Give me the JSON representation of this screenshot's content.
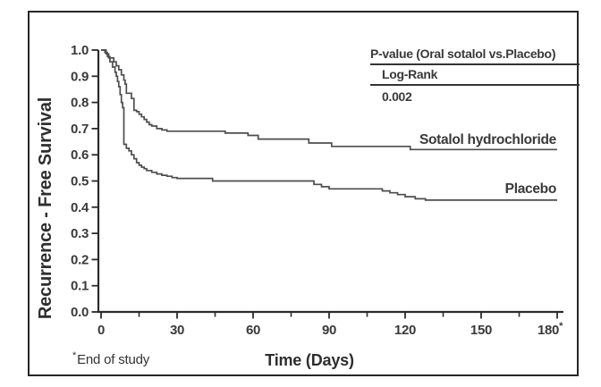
{
  "chart_data": {
    "type": "line",
    "chart_style": "kaplan-meier-step",
    "title": "",
    "xlabel": "Time (Days)",
    "ylabel": "Recurrence - Free Survival",
    "xlim": [
      0,
      183
    ],
    "ylim": [
      0.0,
      1.0
    ],
    "grid": false,
    "xticks": [
      0,
      30,
      60,
      90,
      120,
      150,
      180
    ],
    "xtick_labels": [
      "0",
      "30",
      "60",
      "90",
      "120",
      "150",
      "180*"
    ],
    "minor_xticks": [
      15,
      45,
      75,
      105,
      135,
      165
    ],
    "yticks": [
      1.0,
      0.9,
      0.8,
      0.7,
      0.6,
      0.5,
      0.4,
      0.3,
      0.2,
      0.1,
      0.0
    ],
    "ytick_labels": [
      "1.0",
      "0.9",
      "0.8",
      "0.7",
      "0.6",
      "0.5",
      "0.4",
      "0.3",
      "0.2",
      "0.1",
      "0.0"
    ],
    "legend_position": "labels-at-line-ends",
    "series": [
      {
        "name": "Sotalol hydrochloride",
        "points": [
          [
            0,
            1.0
          ],
          [
            2,
            0.985
          ],
          [
            3,
            0.97
          ],
          [
            5,
            0.955
          ],
          [
            6,
            0.94
          ],
          [
            7,
            0.925
          ],
          [
            8,
            0.905
          ],
          [
            9,
            0.885
          ],
          [
            9.5,
            0.87
          ],
          [
            10,
            0.835
          ],
          [
            12,
            0.815
          ],
          [
            13,
            0.77
          ],
          [
            14,
            0.765
          ],
          [
            15,
            0.755
          ],
          [
            16,
            0.745
          ],
          [
            17,
            0.735
          ],
          [
            18,
            0.725
          ],
          [
            19,
            0.715
          ],
          [
            20,
            0.71
          ],
          [
            22,
            0.7
          ],
          [
            24,
            0.695
          ],
          [
            26,
            0.69
          ],
          [
            49,
            0.683
          ],
          [
            58,
            0.674
          ],
          [
            62,
            0.66
          ],
          [
            82,
            0.645
          ],
          [
            91,
            0.632
          ],
          [
            122,
            0.62
          ],
          [
            180,
            0.62
          ]
        ]
      },
      {
        "name": "Placebo",
        "points": [
          [
            0,
            1.0
          ],
          [
            1.5,
            0.99
          ],
          [
            2.5,
            0.975
          ],
          [
            3.5,
            0.955
          ],
          [
            4.5,
            0.935
          ],
          [
            5.5,
            0.915
          ],
          [
            6,
            0.9
          ],
          [
            6.5,
            0.88
          ],
          [
            7,
            0.86
          ],
          [
            7.5,
            0.83
          ],
          [
            8,
            0.8
          ],
          [
            8.5,
            0.78
          ],
          [
            9,
            0.64
          ],
          [
            10,
            0.625
          ],
          [
            11,
            0.615
          ],
          [
            12,
            0.6
          ],
          [
            13,
            0.585
          ],
          [
            14,
            0.57
          ],
          [
            15,
            0.56
          ],
          [
            16,
            0.553
          ],
          [
            17,
            0.547
          ],
          [
            18,
            0.54
          ],
          [
            20,
            0.533
          ],
          [
            22,
            0.527
          ],
          [
            24,
            0.522
          ],
          [
            26,
            0.518
          ],
          [
            28,
            0.513
          ],
          [
            30,
            0.51
          ],
          [
            44,
            0.5
          ],
          [
            84,
            0.487
          ],
          [
            87,
            0.478
          ],
          [
            90,
            0.47
          ],
          [
            111,
            0.462
          ],
          [
            114,
            0.455
          ],
          [
            117,
            0.448
          ],
          [
            120,
            0.44
          ],
          [
            124,
            0.432
          ],
          [
            128,
            0.427
          ],
          [
            180,
            0.427
          ]
        ]
      }
    ],
    "annotation": {
      "p_value_header": "P-value (Oral sotalol vs.Placebo)",
      "test_name": "Log-Rank",
      "p_value": "0.002"
    },
    "footnote_marker": "*",
    "footnote": "End of study",
    "end_of_study_day": 180,
    "colors": {
      "curve": "#4d4d4d",
      "axis": "#2b2b2b",
      "text": "#3a3a3a",
      "border": "#262626"
    }
  }
}
